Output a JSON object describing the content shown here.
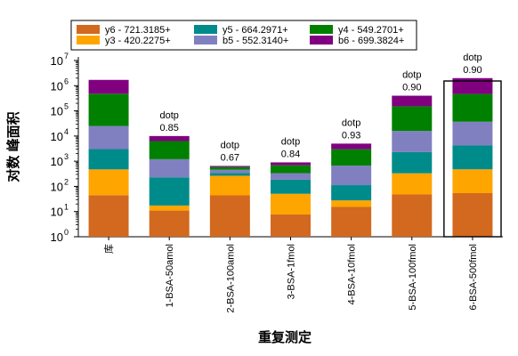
{
  "chart_data": {
    "type": "bar",
    "stacked": true,
    "y_scale": "log",
    "ylim": [
      1,
      10000000
    ],
    "y_ticks": [
      {
        "value": 1,
        "mant": "10",
        "exp": "0"
      },
      {
        "value": 10,
        "mant": "10",
        "exp": "1"
      },
      {
        "value": 100,
        "mant": "10",
        "exp": "2"
      },
      {
        "value": 1000,
        "mant": "10",
        "exp": "3"
      },
      {
        "value": 10000,
        "mant": "10",
        "exp": "4"
      },
      {
        "value": 100000,
        "mant": "10",
        "exp": "5"
      },
      {
        "value": 1000000,
        "mant": "10",
        "exp": "6"
      },
      {
        "value": 10000000,
        "mant": "10",
        "exp": "7"
      }
    ],
    "xlabel": "重复测定",
    "ylabel": "对数 峰面积",
    "legend_position": "top",
    "categories": [
      "库",
      "1-BSA-50amol",
      "2-BSA-100amol",
      "3-BSA-1fmol",
      "4-BSA-10fmol",
      "5-BSA-100fmol",
      "6-BSA-500fmol"
    ],
    "highlighted_category": "6-BSA-500fmol",
    "annotation_label": "dotp",
    "annotations": [
      null,
      "0.85",
      "0.67",
      "0.84",
      "0.93",
      "0.90",
      "0.90"
    ],
    "totals": [
      1700000,
      10000,
      650,
      900,
      5000,
      400000,
      2000000
    ],
    "series": [
      {
        "name": "y6 - 721.3185+",
        "color": "#d2691e",
        "values": [
          450000,
          2600,
          380,
          270,
          1600,
          120000,
          550000
        ]
      },
      {
        "name": "y3 - 420.2275+",
        "color": "#ffa500",
        "values": [
          280000,
          500,
          180,
          250,
          350,
          60000,
          300000
        ]
      },
      {
        "name": "y5 - 664.2971+",
        "color": "#008b8b",
        "values": [
          220000,
          2800,
          25,
          170,
          820,
          60000,
          300000
        ]
      },
      {
        "name": "b5 - 552.3140+",
        "color": "#8080c0",
        "values": [
          250000,
          1800,
          30,
          80,
          1050,
          60000,
          300000
        ]
      },
      {
        "name": "y4 - 549.2701+",
        "color": "#008000",
        "values": [
          350000,
          1800,
          25,
          95,
          880,
          70000,
          350000
        ]
      },
      {
        "name": "b6 - 699.3824+",
        "color": "#800080",
        "values": [
          150000,
          500,
          10,
          35,
          300,
          30000,
          200000
        ]
      }
    ]
  }
}
